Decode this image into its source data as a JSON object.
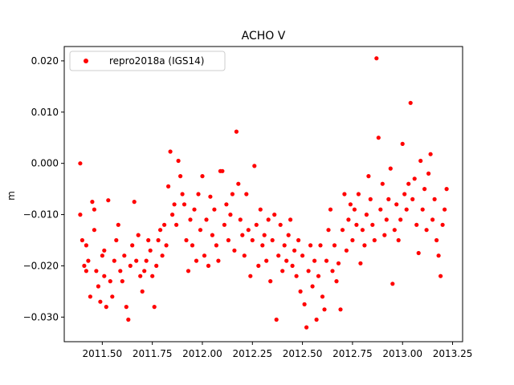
{
  "chart_data": {
    "type": "scatter",
    "title": "ACHO V",
    "xlabel": "",
    "ylabel": "m",
    "xlim": [
      2011.31,
      2013.3
    ],
    "ylim": [
      -0.0348,
      0.0228
    ],
    "xticks": [
      2011.5,
      2011.75,
      2012.0,
      2012.25,
      2012.5,
      2012.75,
      2013.0,
      2013.25
    ],
    "xtick_labels": [
      "2011.50",
      "2011.75",
      "2012.00",
      "2012.25",
      "2012.50",
      "2012.75",
      "2013.00",
      "2013.25"
    ],
    "yticks": [
      -0.03,
      -0.02,
      -0.01,
      0.0,
      0.01,
      0.02
    ],
    "ytick_labels": [
      "−0.030",
      "−0.020",
      "−0.010",
      "0.000",
      "0.010",
      "0.020"
    ],
    "legend_position": "upper-left",
    "series": [
      {
        "name": "repro2018a (IGS14)",
        "color": "#ff0000",
        "marker": "circle",
        "points": [
          [
            2011.39,
            0.0
          ],
          [
            2011.39,
            -0.01
          ],
          [
            2011.4,
            -0.015
          ],
          [
            2011.41,
            -0.02
          ],
          [
            2011.42,
            -0.021
          ],
          [
            2011.42,
            -0.016
          ],
          [
            2011.43,
            -0.019
          ],
          [
            2011.44,
            -0.026
          ],
          [
            2011.45,
            -0.0075
          ],
          [
            2011.46,
            -0.009
          ],
          [
            2011.46,
            -0.013
          ],
          [
            2011.47,
            -0.021
          ],
          [
            2011.48,
            -0.024
          ],
          [
            2011.49,
            -0.027
          ],
          [
            2011.5,
            -0.018
          ],
          [
            2011.51,
            -0.022
          ],
          [
            2011.51,
            -0.017
          ],
          [
            2011.52,
            -0.028
          ],
          [
            2011.53,
            -0.0072
          ],
          [
            2011.54,
            -0.023
          ],
          [
            2011.55,
            -0.026
          ],
          [
            2011.56,
            -0.019
          ],
          [
            2011.57,
            -0.015
          ],
          [
            2011.58,
            -0.012
          ],
          [
            2011.59,
            -0.021
          ],
          [
            2011.6,
            -0.023
          ],
          [
            2011.61,
            -0.018
          ],
          [
            2011.62,
            -0.028
          ],
          [
            2011.63,
            -0.0305
          ],
          [
            2011.64,
            -0.02
          ],
          [
            2011.65,
            -0.016
          ],
          [
            2011.66,
            -0.0075
          ],
          [
            2011.67,
            -0.019
          ],
          [
            2011.68,
            -0.014
          ],
          [
            2011.69,
            -0.022
          ],
          [
            2011.7,
            -0.025
          ],
          [
            2011.71,
            -0.021
          ],
          [
            2011.72,
            -0.019
          ],
          [
            2011.73,
            -0.015
          ],
          [
            2011.74,
            -0.017
          ],
          [
            2011.75,
            -0.022
          ],
          [
            2011.76,
            -0.028
          ],
          [
            2011.77,
            -0.02
          ],
          [
            2011.78,
            -0.015
          ],
          [
            2011.79,
            -0.013
          ],
          [
            2011.8,
            -0.018
          ],
          [
            2011.81,
            -0.012
          ],
          [
            2011.82,
            -0.016
          ],
          [
            2011.83,
            -0.0045
          ],
          [
            2011.84,
            0.0023
          ],
          [
            2011.85,
            -0.01
          ],
          [
            2011.86,
            -0.008
          ],
          [
            2011.87,
            -0.012
          ],
          [
            2011.88,
            0.0005
          ],
          [
            2011.89,
            -0.0025
          ],
          [
            2011.9,
            -0.006
          ],
          [
            2011.91,
            -0.008
          ],
          [
            2011.92,
            -0.015
          ],
          [
            2011.93,
            -0.021
          ],
          [
            2011.94,
            -0.011
          ],
          [
            2011.95,
            -0.016
          ],
          [
            2011.96,
            -0.009
          ],
          [
            2011.97,
            -0.019
          ],
          [
            2011.98,
            -0.006
          ],
          [
            2011.99,
            -0.013
          ],
          [
            2012.0,
            -0.0025
          ],
          [
            2012.01,
            -0.018
          ],
          [
            2012.02,
            -0.011
          ],
          [
            2012.03,
            -0.02
          ],
          [
            2012.04,
            -0.0065
          ],
          [
            2012.05,
            -0.014
          ],
          [
            2012.06,
            -0.009
          ],
          [
            2012.07,
            -0.016
          ],
          [
            2012.08,
            -0.019
          ],
          [
            2012.09,
            -0.0015
          ],
          [
            2012.1,
            -0.0015
          ],
          [
            2012.11,
            -0.012
          ],
          [
            2012.12,
            -0.008
          ],
          [
            2012.13,
            -0.015
          ],
          [
            2012.14,
            -0.01
          ],
          [
            2012.15,
            -0.006
          ],
          [
            2012.16,
            -0.017
          ],
          [
            2012.17,
            0.0062
          ],
          [
            2012.18,
            -0.004
          ],
          [
            2012.19,
            -0.011
          ],
          [
            2012.2,
            -0.014
          ],
          [
            2012.21,
            -0.018
          ],
          [
            2012.22,
            -0.006
          ],
          [
            2012.23,
            -0.013
          ],
          [
            2012.24,
            -0.022
          ],
          [
            2012.25,
            -0.015
          ],
          [
            2012.26,
            -0.0005
          ],
          [
            2012.27,
            -0.012
          ],
          [
            2012.28,
            -0.02
          ],
          [
            2012.29,
            -0.009
          ],
          [
            2012.3,
            -0.016
          ],
          [
            2012.31,
            -0.014
          ],
          [
            2012.32,
            -0.019
          ],
          [
            2012.33,
            -0.011
          ],
          [
            2012.34,
            -0.023
          ],
          [
            2012.35,
            -0.015
          ],
          [
            2012.36,
            -0.01
          ],
          [
            2012.37,
            -0.0305
          ],
          [
            2012.38,
            -0.018
          ],
          [
            2012.39,
            -0.012
          ],
          [
            2012.4,
            -0.021
          ],
          [
            2012.41,
            -0.016
          ],
          [
            2012.42,
            -0.019
          ],
          [
            2012.43,
            -0.014
          ],
          [
            2012.44,
            -0.011
          ],
          [
            2012.45,
            -0.02
          ],
          [
            2012.46,
            -0.017
          ],
          [
            2012.47,
            -0.022
          ],
          [
            2012.48,
            -0.015
          ],
          [
            2012.49,
            -0.025
          ],
          [
            2012.5,
            -0.018
          ],
          [
            2012.51,
            -0.0275
          ],
          [
            2012.52,
            -0.032
          ],
          [
            2012.53,
            -0.021
          ],
          [
            2012.54,
            -0.016
          ],
          [
            2012.55,
            -0.024
          ],
          [
            2012.56,
            -0.019
          ],
          [
            2012.57,
            -0.0305
          ],
          [
            2012.58,
            -0.022
          ],
          [
            2012.59,
            -0.016
          ],
          [
            2012.6,
            -0.026
          ],
          [
            2012.61,
            -0.0285
          ],
          [
            2012.62,
            -0.019
          ],
          [
            2012.63,
            -0.013
          ],
          [
            2012.64,
            -0.009
          ],
          [
            2012.65,
            -0.021
          ],
          [
            2012.66,
            -0.016
          ],
          [
            2012.67,
            -0.023
          ],
          [
            2012.68,
            -0.0195
          ],
          [
            2012.69,
            -0.0285
          ],
          [
            2012.7,
            -0.013
          ],
          [
            2012.71,
            -0.006
          ],
          [
            2012.72,
            -0.017
          ],
          [
            2012.73,
            -0.011
          ],
          [
            2012.74,
            -0.008
          ],
          [
            2012.75,
            -0.015
          ],
          [
            2012.76,
            -0.009
          ],
          [
            2012.77,
            -0.012
          ],
          [
            2012.78,
            -0.006
          ],
          [
            2012.79,
            -0.0195
          ],
          [
            2012.8,
            -0.013
          ],
          [
            2012.81,
            -0.016
          ],
          [
            2012.82,
            -0.01
          ],
          [
            2012.83,
            -0.0025
          ],
          [
            2012.84,
            -0.007
          ],
          [
            2012.85,
            -0.012
          ],
          [
            2012.86,
            -0.015
          ],
          [
            2012.87,
            0.0205
          ],
          [
            2012.88,
            0.005
          ],
          [
            2012.89,
            -0.009
          ],
          [
            2012.9,
            -0.004
          ],
          [
            2012.91,
            -0.014
          ],
          [
            2012.92,
            -0.011
          ],
          [
            2012.93,
            -0.007
          ],
          [
            2012.94,
            -0.001
          ],
          [
            2012.95,
            -0.0235
          ],
          [
            2012.96,
            -0.013
          ],
          [
            2012.97,
            -0.008
          ],
          [
            2012.98,
            -0.015
          ],
          [
            2012.99,
            -0.011
          ],
          [
            2013.0,
            0.0038
          ],
          [
            2013.01,
            -0.006
          ],
          [
            2013.02,
            -0.009
          ],
          [
            2013.03,
            -0.004
          ],
          [
            2013.04,
            0.0118
          ],
          [
            2013.05,
            -0.007
          ],
          [
            2013.06,
            -0.003
          ],
          [
            2013.07,
            -0.012
          ],
          [
            2013.08,
            -0.0175
          ],
          [
            2013.09,
            0.0005
          ],
          [
            2013.1,
            -0.009
          ],
          [
            2013.11,
            -0.005
          ],
          [
            2013.12,
            -0.013
          ],
          [
            2013.13,
            -0.002
          ],
          [
            2013.14,
            0.0018
          ],
          [
            2013.15,
            -0.011
          ],
          [
            2013.16,
            -0.007
          ],
          [
            2013.17,
            -0.015
          ],
          [
            2013.18,
            -0.018
          ],
          [
            2013.19,
            -0.022
          ],
          [
            2013.2,
            -0.012
          ],
          [
            2013.21,
            -0.009
          ],
          [
            2013.22,
            -0.005
          ]
        ]
      }
    ]
  }
}
